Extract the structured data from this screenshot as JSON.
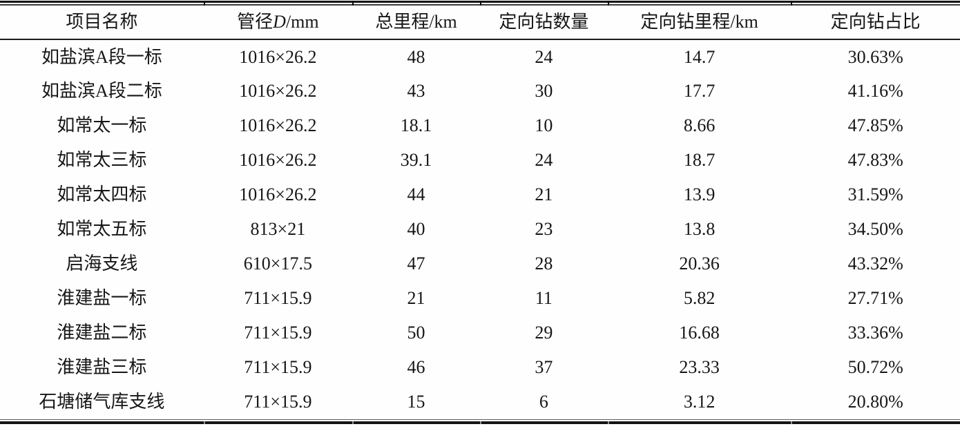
{
  "colors": {
    "background": "#fefefe",
    "text": "#161616",
    "rule": "#141414"
  },
  "table": {
    "headers": [
      {
        "pre": "项目名称",
        "italic": "",
        "post": ""
      },
      {
        "pre": "管径",
        "italic": "D",
        "post": "/mm"
      },
      {
        "pre": "总里程/km",
        "italic": "",
        "post": ""
      },
      {
        "pre": "定向钻数量",
        "italic": "",
        "post": ""
      },
      {
        "pre": "定向钻里程/km",
        "italic": "",
        "post": ""
      },
      {
        "pre": "定向钻占比",
        "italic": "",
        "post": ""
      }
    ],
    "rows": [
      {
        "cells": [
          "如盐滨A段一标",
          "1016×26.2",
          "48",
          "24",
          "14.7",
          "30.63%"
        ]
      },
      {
        "cells": [
          "如盐滨A段二标",
          "1016×26.2",
          "43",
          "30",
          "17.7",
          "41.16%"
        ]
      },
      {
        "cells": [
          "如常太一标",
          "1016×26.2",
          "18.1",
          "10",
          "8.66",
          "47.85%"
        ]
      },
      {
        "cells": [
          "如常太三标",
          "1016×26.2",
          "39.1",
          "24",
          "18.7",
          "47.83%"
        ]
      },
      {
        "cells": [
          "如常太四标",
          "1016×26.2",
          "44",
          "21",
          "13.9",
          "31.59%"
        ]
      },
      {
        "cells": [
          "如常太五标",
          "813×21",
          "40",
          "23",
          "13.8",
          "34.50%"
        ]
      },
      {
        "cells": [
          "启海支线",
          "610×17.5",
          "47",
          "28",
          "20.36",
          "43.32%"
        ]
      },
      {
        "cells": [
          "淮建盐一标",
          "711×15.9",
          "21",
          "11",
          "5.82",
          "27.71%"
        ]
      },
      {
        "cells": [
          "淮建盐二标",
          "711×15.9",
          "50",
          "29",
          "16.68",
          "33.36%"
        ]
      },
      {
        "cells": [
          "淮建盐三标",
          "711×15.9",
          "46",
          "37",
          "23.33",
          "50.72%"
        ]
      },
      {
        "cells": [
          "石塘储气库支线",
          "711×15.9",
          "15",
          "6",
          "3.12",
          "20.80%"
        ]
      }
    ]
  }
}
